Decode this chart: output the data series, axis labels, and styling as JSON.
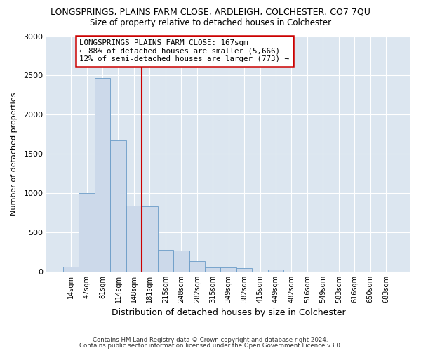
{
  "title": "LONGSPRINGS, PLAINS FARM CLOSE, ARDLEIGH, COLCHESTER, CO7 7QU",
  "subtitle": "Size of property relative to detached houses in Colchester",
  "xlabel": "Distribution of detached houses by size in Colchester",
  "ylabel": "Number of detached properties",
  "categories": [
    "14sqm",
    "47sqm",
    "81sqm",
    "114sqm",
    "148sqm",
    "181sqm",
    "215sqm",
    "248sqm",
    "282sqm",
    "315sqm",
    "349sqm",
    "382sqm",
    "415sqm",
    "449sqm",
    "482sqm",
    "516sqm",
    "549sqm",
    "583sqm",
    "616sqm",
    "650sqm",
    "683sqm"
  ],
  "values": [
    60,
    1000,
    2470,
    1670,
    840,
    830,
    275,
    270,
    130,
    55,
    50,
    40,
    0,
    30,
    0,
    0,
    0,
    0,
    0,
    0,
    0
  ],
  "bar_color": "#ccd9ea",
  "bar_edge_color": "#6a9cc7",
  "vline_color": "#cc0000",
  "annotation_text": "LONGSPRINGS PLAINS FARM CLOSE: 167sqm\n← 88% of detached houses are smaller (5,666)\n12% of semi-detached houses are larger (773) →",
  "annotation_box_color": "#ffffff",
  "annotation_box_edge": "#cc0000",
  "ylim": [
    0,
    3000
  ],
  "yticks": [
    0,
    500,
    1000,
    1500,
    2000,
    2500,
    3000
  ],
  "background_color": "#dce6f0",
  "fig_background": "#ffffff",
  "grid_color": "#ffffff",
  "footer1": "Contains HM Land Registry data © Crown copyright and database right 2024.",
  "footer2": "Contains public sector information licensed under the Open Government Licence v3.0."
}
